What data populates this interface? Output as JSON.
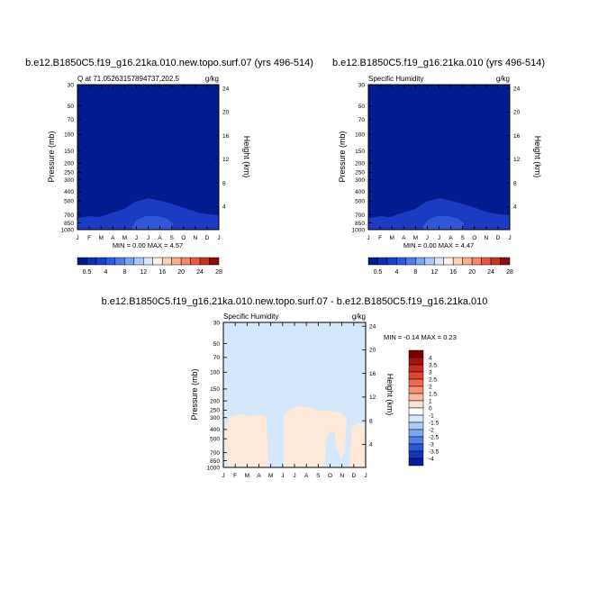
{
  "months": [
    "J",
    "F",
    "M",
    "A",
    "M",
    "J",
    "J",
    "A",
    "S",
    "O",
    "N",
    "D",
    "J"
  ],
  "pressure_ticks": [
    "30",
    "50",
    "70",
    "100",
    "150",
    "200",
    "250",
    "300",
    "400",
    "500",
    "700",
    "850",
    "1000"
  ],
  "height_ticks": [
    "24",
    "20",
    "16",
    "12",
    "8",
    "4"
  ],
  "axis_labels": {
    "left": "Pressure (mb)",
    "right": "Height (km)"
  },
  "panels": [
    {
      "title": "b.e12.B1850C5.f19_g16.21ka.010.new.topo.surf.07 (yrs 496-514)",
      "left_label": "Q at 71.05263157894737,202.5",
      "units": "g/kg",
      "stats": "MIN =   0.00 MAX =   4.57"
    },
    {
      "title": "b.e12.B1850C5.f19_g16.21ka.010 (yrs 496-514)",
      "left_label": "Specific Humidity",
      "units": "g/kg",
      "stats": "MIN =   0.00 MAX =   4.47"
    },
    {
      "title": "b.e12.B1850C5.f19_g16.21ka.010.new.topo.surf.07 - b.e12.B1850C5.f19_g16.21ka.010",
      "left_label": "Specific Humidity",
      "units": "g/kg",
      "stats": "MIN =  -0.14 MAX =   0.23"
    }
  ],
  "colorbar_top": {
    "labels": [
      "0.5",
      "4",
      "8",
      "12",
      "16",
      "20",
      "24",
      "28"
    ],
    "colors": [
      "#001a8c",
      "#0a2fb0",
      "#1540cc",
      "#2a5ae0",
      "#4f7ee8",
      "#7aa3f0",
      "#a9c8f5",
      "#d6e8fb",
      "#fff1e6",
      "#fdd2b8",
      "#fbae8c",
      "#f5866a",
      "#e65a45",
      "#c8321f",
      "#8b0d0d"
    ]
  },
  "colorbar_diff": {
    "labels": [
      "4",
      "3.5",
      "3",
      "2.5",
      "2",
      "1.5",
      "1",
      "0",
      "-1",
      "-1.5",
      "-2",
      "-2.5",
      "-3",
      "-3.5",
      "-4"
    ],
    "colors": [
      "#7a0000",
      "#a11410",
      "#c62a1d",
      "#e2452f",
      "#f0694d",
      "#f69376",
      "#f9b79f",
      "#fde2d3",
      "#ffffff",
      "#d5e7fb",
      "#a9cbf5",
      "#7ba7ee",
      "#4e80e5",
      "#2b58d6",
      "#1237bd",
      "#0a1d97"
    ]
  },
  "chart_data": [
    {
      "type": "heatmap",
      "title": "b.e12.B1850C5.f19_g16.21ka.010.new.topo.surf.07 (yrs 496-514)",
      "x": [
        "J",
        "F",
        "M",
        "A",
        "M",
        "J",
        "J",
        "A",
        "S",
        "O",
        "N",
        "D",
        "J"
      ],
      "ylabel": "Pressure (mb)",
      "y2label": "Height (km)",
      "ylim": [
        1000,
        30
      ],
      "units": "g/kg",
      "levels": [
        0.5,
        4,
        8,
        12,
        16,
        20,
        24,
        28
      ],
      "min": 0.0,
      "max": 4.57
    },
    {
      "type": "heatmap",
      "title": "b.e12.B1850C5.f19_g16.21ka.010 (yrs 496-514)",
      "x": [
        "J",
        "F",
        "M",
        "A",
        "M",
        "J",
        "J",
        "A",
        "S",
        "O",
        "N",
        "D",
        "J"
      ],
      "ylabel": "Pressure (mb)",
      "y2label": "Height (km)",
      "ylim": [
        1000,
        30
      ],
      "units": "g/kg",
      "levels": [
        0.5,
        4,
        8,
        12,
        16,
        20,
        24,
        28
      ],
      "min": 0.0,
      "max": 4.47
    },
    {
      "type": "heatmap",
      "title": "b.e12.B1850C5.f19_g16.21ka.010.new.topo.surf.07 - b.e12.B1850C5.f19_g16.21ka.010",
      "x": [
        "J",
        "F",
        "M",
        "A",
        "M",
        "J",
        "J",
        "A",
        "S",
        "O",
        "N",
        "D",
        "J"
      ],
      "ylabel": "Pressure (mb)",
      "y2label": "Height (km)",
      "ylim": [
        1000,
        30
      ],
      "units": "g/kg",
      "levels": [
        -4,
        -3.5,
        -3,
        -2.5,
        -2,
        -1.5,
        -1,
        0,
        1,
        1.5,
        2,
        2.5,
        3,
        3.5,
        4
      ],
      "min": -0.14,
      "max": 0.23
    }
  ]
}
